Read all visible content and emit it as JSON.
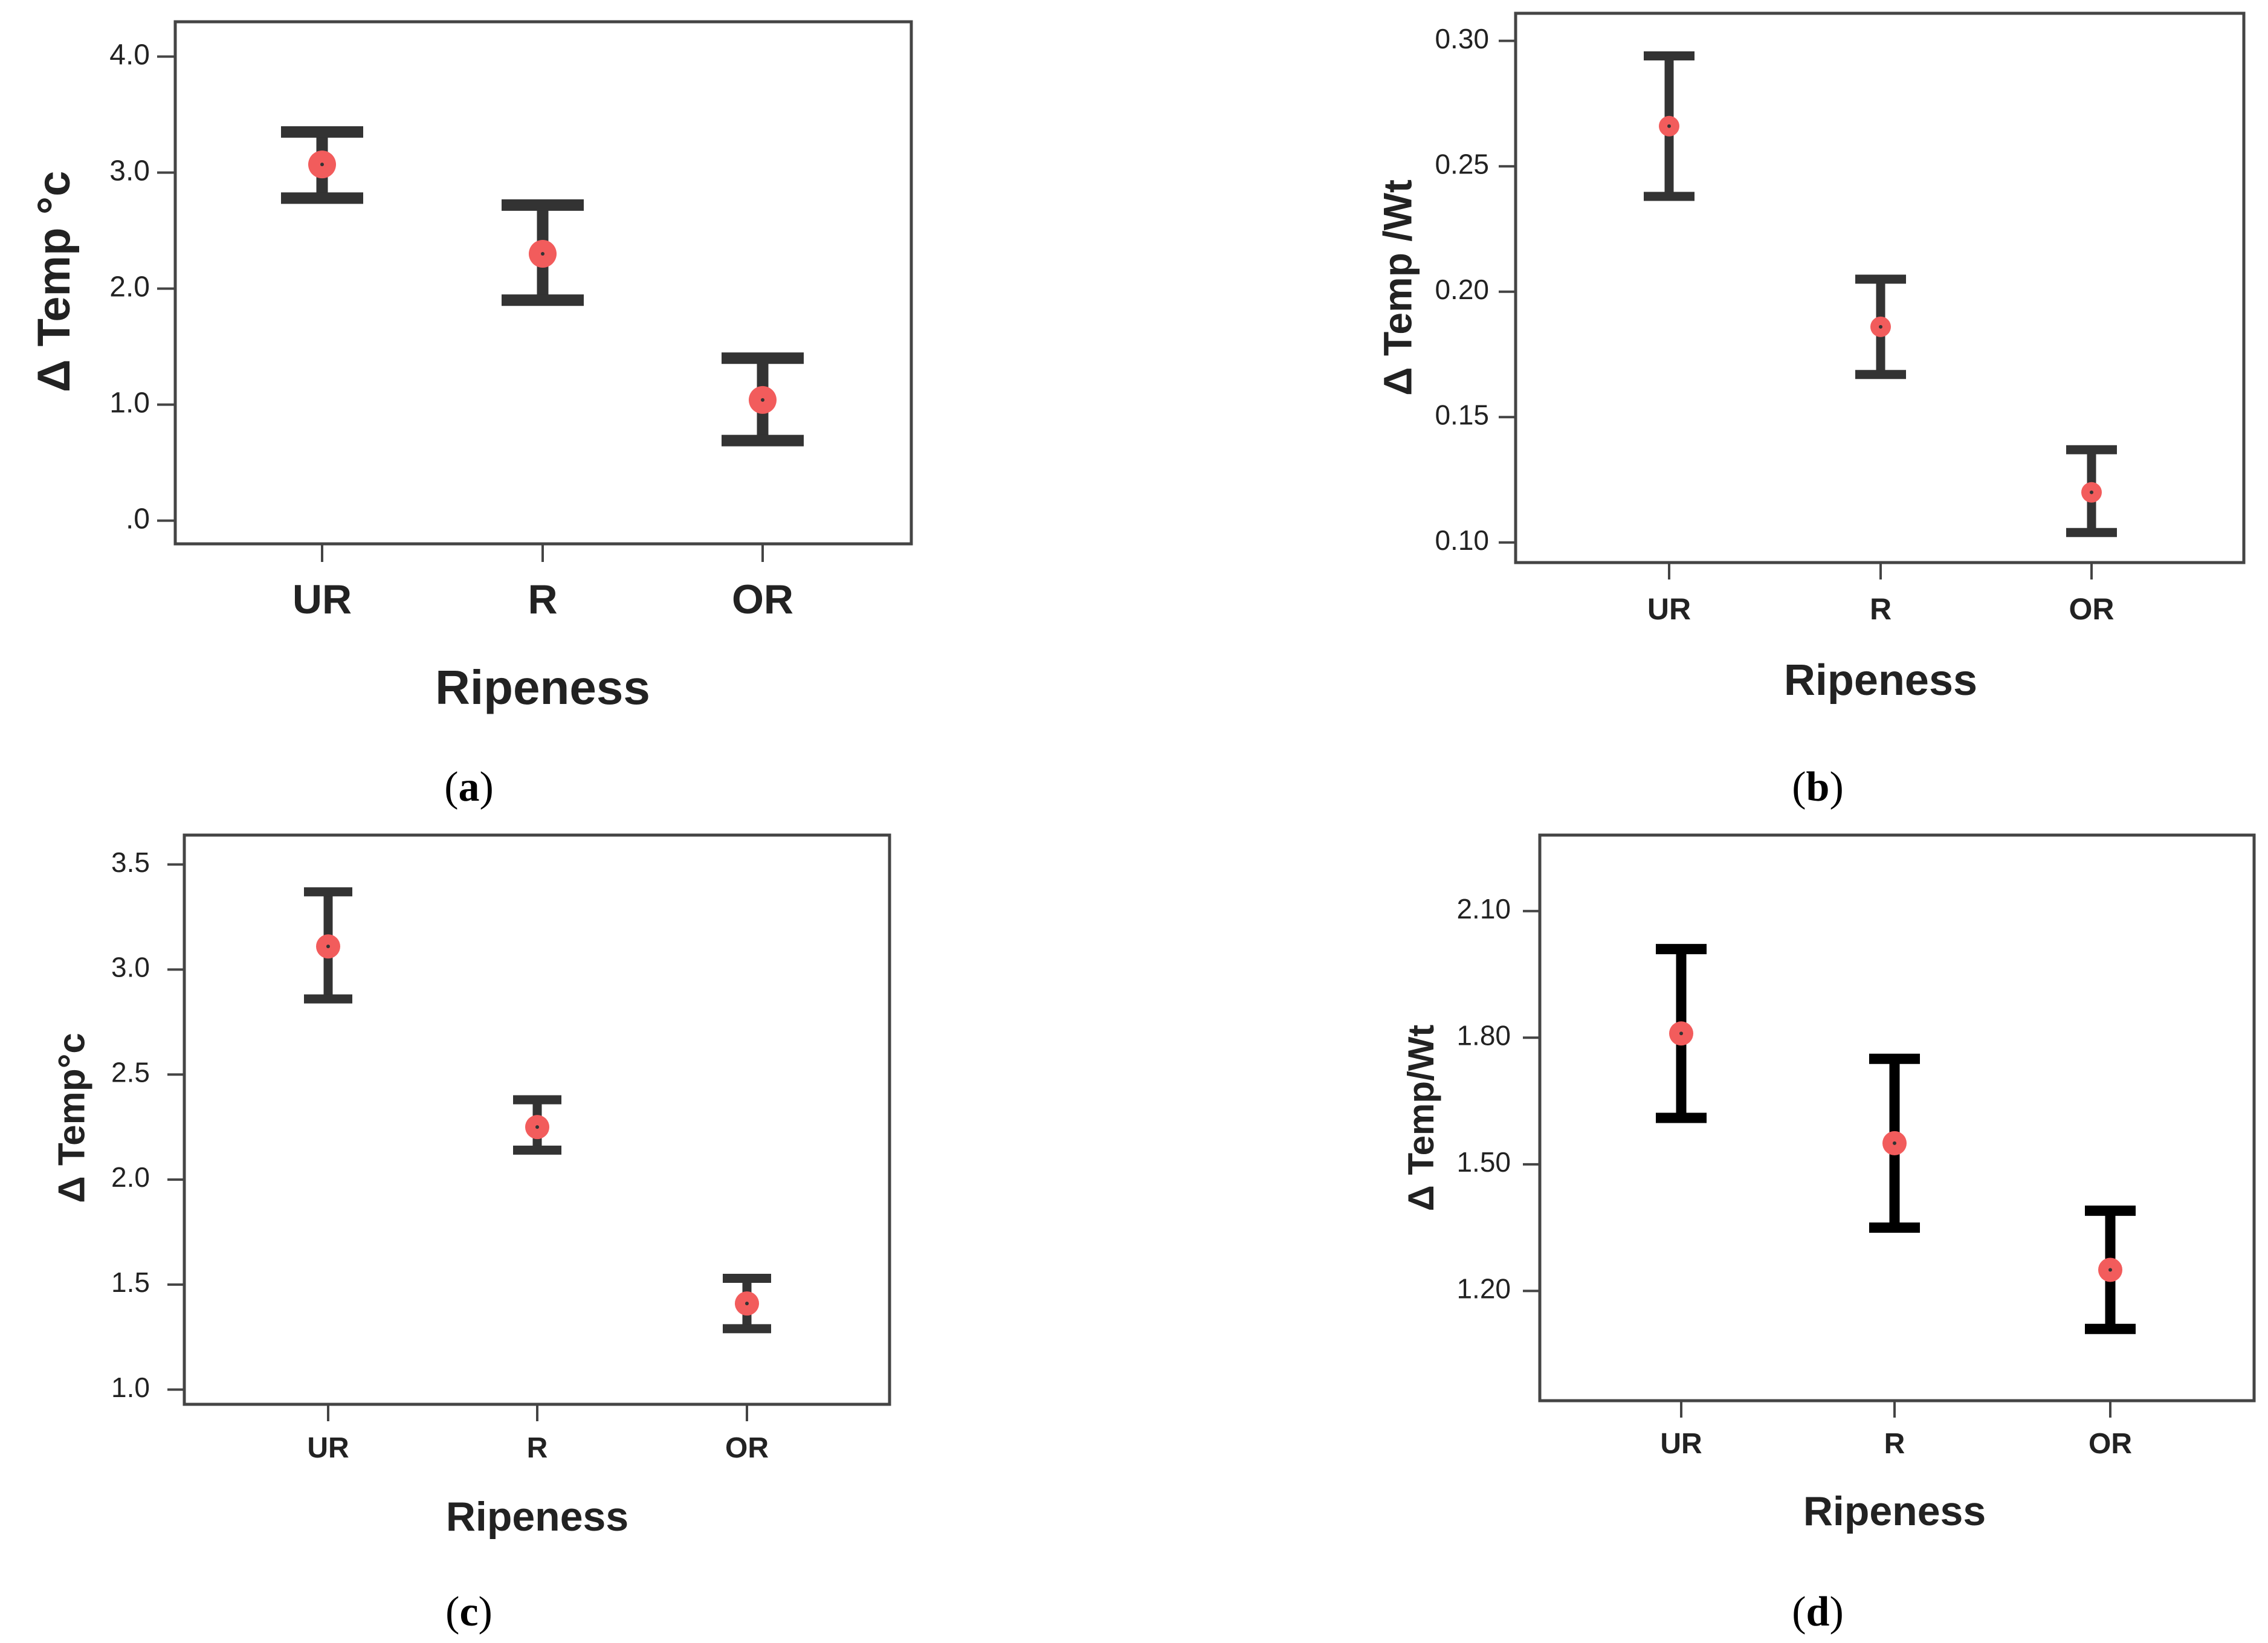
{
  "colors": {
    "marker": "#f25c5c",
    "error_bar": "#333333",
    "error_bar_dark": "#000000",
    "frame": "#444444",
    "text": "#222222"
  },
  "chart_data": [
    {
      "panel": "a",
      "caption_letter": "a",
      "type": "errorbar",
      "categories": [
        "UR",
        "R",
        "OR"
      ],
      "xlabel": "Ripeness",
      "ylabel": "Δ Temp °c",
      "ylim": [
        -0.2,
        4.3
      ],
      "yticks": [
        0.0,
        1.0,
        2.0,
        3.0,
        4.0
      ],
      "ytick_labels": [
        ".0",
        "1.0",
        "2.0",
        "3.0",
        "4.0"
      ],
      "mean": [
        3.07,
        2.3,
        1.04
      ],
      "lower": [
        2.78,
        1.9,
        0.69
      ],
      "upper": [
        3.35,
        2.72,
        1.4
      ]
    },
    {
      "panel": "b",
      "caption_letter": "b",
      "type": "errorbar",
      "categories": [
        "UR",
        "R",
        "OR"
      ],
      "xlabel": "Ripeness",
      "ylabel": "Δ Temp /Wt",
      "ylim": [
        0.092,
        0.311
      ],
      "yticks": [
        0.1,
        0.15,
        0.2,
        0.25,
        0.3
      ],
      "ytick_labels": [
        "0.10",
        "0.15",
        "0.20",
        "0.25",
        "0.30"
      ],
      "mean": [
        0.266,
        0.186,
        0.12
      ],
      "lower": [
        0.238,
        0.167,
        0.104
      ],
      "upper": [
        0.294,
        0.205,
        0.137
      ]
    },
    {
      "panel": "c",
      "caption_letter": "c",
      "type": "errorbar",
      "categories": [
        "UR",
        "R",
        "OR"
      ],
      "xlabel": "Ripeness",
      "ylabel": "Δ Temp°c",
      "ylim": [
        0.93,
        3.64
      ],
      "yticks": [
        1.0,
        1.5,
        2.0,
        2.5,
        3.0,
        3.5
      ],
      "ytick_labels": [
        "1.0",
        "1.5",
        "2.0",
        "2.5",
        "3.0",
        "3.5"
      ],
      "mean": [
        3.11,
        2.25,
        1.41
      ],
      "lower": [
        2.86,
        2.14,
        1.29
      ],
      "upper": [
        3.37,
        2.38,
        1.53
      ]
    },
    {
      "panel": "d",
      "caption_letter": "d",
      "type": "errorbar",
      "categories": [
        "UR",
        "R",
        "OR"
      ],
      "xlabel": "Ripeness",
      "ylabel": "Δ Temp/Wt",
      "ylim": [
        0.94,
        2.28
      ],
      "yticks": [
        1.2,
        1.5,
        1.8,
        2.1
      ],
      "ytick_labels": [
        "1.20",
        "1.50",
        "1.80",
        "2.10"
      ],
      "mean": [
        1.81,
        1.55,
        1.25
      ],
      "lower": [
        1.61,
        1.35,
        1.11
      ],
      "upper": [
        2.01,
        1.75,
        1.39
      ]
    }
  ]
}
